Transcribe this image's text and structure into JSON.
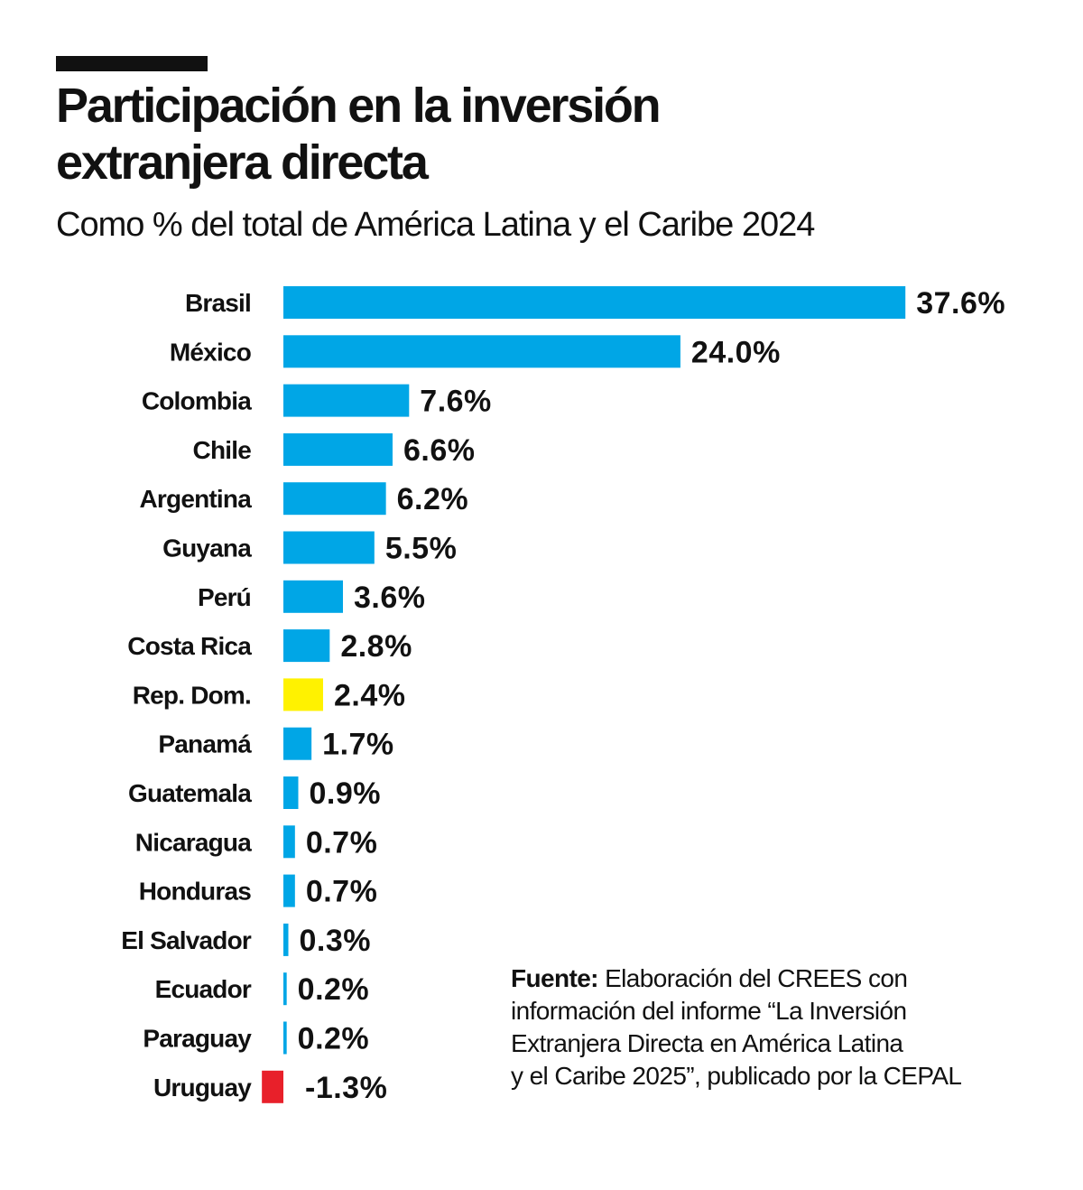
{
  "header": {
    "title_line1": "Participación en la inversión",
    "title_line2": "extranjera directa",
    "subtitle": "Como % del total de América Latina y el Caribe 2024"
  },
  "chart_data": {
    "type": "bar",
    "orientation": "horizontal",
    "title": "Participación en la inversión extranjera directa",
    "subtitle": "Como % del total de América Latina y el Caribe 2024",
    "xlabel": "",
    "ylabel": "",
    "unit": "%",
    "grid": false,
    "categories": [
      "Brasil",
      "México",
      "Colombia",
      "Chile",
      "Argentina",
      "Guyana",
      "Perú",
      "Costa Rica",
      "Rep. Dom.",
      "Panamá",
      "Guatemala",
      "Nicaragua",
      "Honduras",
      "El Salvador",
      "Ecuador",
      "Paraguay",
      "Uruguay"
    ],
    "values": [
      37.6,
      24.0,
      7.6,
      6.6,
      6.2,
      5.5,
      3.6,
      2.8,
      2.4,
      1.7,
      0.9,
      0.7,
      0.7,
      0.3,
      0.2,
      0.2,
      -1.3
    ],
    "value_labels": [
      "37.6%",
      "24.0%",
      "7.6%",
      "6.6%",
      "6.2%",
      "5.5%",
      "3.6%",
      "2.8%",
      "2.4%",
      "1.7%",
      "0.9%",
      "0.7%",
      "0.7%",
      "0.3%",
      "0.2%",
      "0.2%",
      "-1.3%"
    ],
    "colors": {
      "default": "#00a6e6",
      "highlight": "#fff200",
      "negative": "#e8202a"
    },
    "highlight_category": "Rep. Dom."
  },
  "source": {
    "label": "Fuente:",
    "line1": "Elaboración del CREES con",
    "line2": "información del informe “La Inversión",
    "line3": "Extranjera Directa en América Latina",
    "line4": "y el Caribe 2025”, publicado por la CEPAL"
  }
}
